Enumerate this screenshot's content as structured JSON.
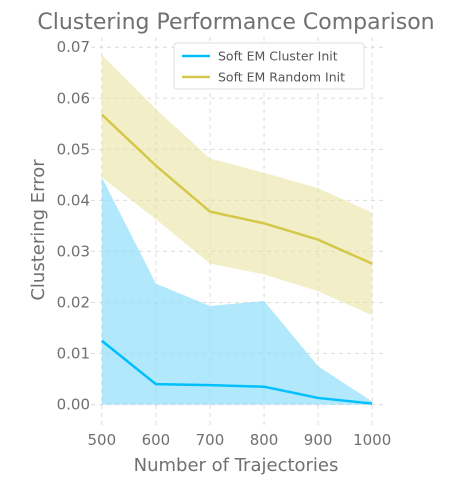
{
  "chart_data": {
    "type": "line",
    "title": "Clustering Performance Comparison",
    "xlabel": "Number of Trajectories",
    "ylabel": "Clustering Error",
    "x": [
      500,
      600,
      700,
      800,
      900,
      1000
    ],
    "x_ticks": [
      "500",
      "600",
      "700",
      "800",
      "900",
      "1000"
    ],
    "y_ticks": [
      "0.00",
      "0.01",
      "0.02",
      "0.03",
      "0.04",
      "0.05",
      "0.06",
      "0.07"
    ],
    "ylim": [
      -0.004,
      0.072
    ],
    "xlim": [
      480,
      1020
    ],
    "grid": true,
    "legend_position": "top-right",
    "series": [
      {
        "name": "Soft EM Cluster Init",
        "color": "#00bfff",
        "fill_color": "#87dcfa",
        "values": [
          0.0125,
          0.004,
          0.0038,
          0.0035,
          0.0013,
          0.0002
        ],
        "lower": [
          0.0,
          0.0,
          0.0,
          0.0,
          0.0,
          0.0
        ],
        "upper": [
          0.0445,
          0.0237,
          0.0193,
          0.0203,
          0.0075,
          0.0006
        ]
      },
      {
        "name": "Soft EM Random Init",
        "color": "#d4c84a",
        "fill_color": "#e8e29a",
        "values": [
          0.0568,
          0.0468,
          0.0378,
          0.0355,
          0.0323,
          0.0276
        ],
        "lower": [
          0.0445,
          0.0363,
          0.0276,
          0.0255,
          0.0222,
          0.0175
        ],
        "upper": [
          0.0685,
          0.0579,
          0.0482,
          0.0454,
          0.0424,
          0.0376
        ]
      }
    ]
  }
}
